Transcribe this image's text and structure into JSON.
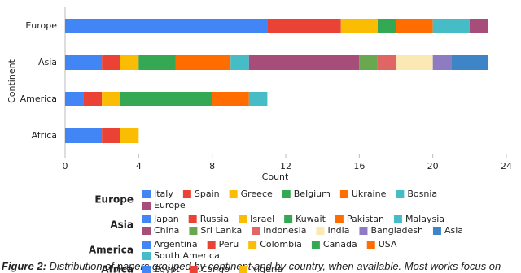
{
  "chart_data": {
    "type": "bar",
    "orientation": "horizontal",
    "stacked": true,
    "x_label": "Count",
    "y_label": "Continent",
    "categories": [
      "Europe",
      "Asia",
      "America",
      "Africa"
    ],
    "xlim": [
      0,
      24
    ],
    "xticks": [
      0,
      4,
      8,
      12,
      16,
      20,
      24
    ],
    "grid": false,
    "series": [
      {
        "name": "Italy",
        "color": "#4285f4",
        "values": [
          11,
          null,
          null,
          null
        ]
      },
      {
        "name": "Spain",
        "color": "#ea4335",
        "values": [
          4,
          null,
          null,
          null
        ]
      },
      {
        "name": "Greece",
        "color": "#fbbc04",
        "values": [
          2,
          null,
          null,
          null
        ]
      },
      {
        "name": "Belgium",
        "color": "#34a853",
        "values": [
          1,
          null,
          null,
          null
        ]
      },
      {
        "name": "Ukraine",
        "color": "#ff6d01",
        "values": [
          2,
          null,
          null,
          null
        ]
      },
      {
        "name": "Bosnia",
        "color": "#46bdc6",
        "values": [
          2,
          null,
          null,
          null
        ]
      },
      {
        "name": "Europe",
        "color": "#a64d79",
        "values": [
          1,
          null,
          null,
          null
        ]
      },
      {
        "name": "Japan",
        "color": "#4285f4",
        "values": [
          null,
          2,
          null,
          null
        ]
      },
      {
        "name": "Russia",
        "color": "#ea4335",
        "values": [
          null,
          1,
          null,
          null
        ]
      },
      {
        "name": "Israel",
        "color": "#fbbc04",
        "values": [
          null,
          1,
          null,
          null
        ]
      },
      {
        "name": "Kuwait",
        "color": "#34a853",
        "values": [
          null,
          2,
          null,
          null
        ]
      },
      {
        "name": "Pakistan",
        "color": "#ff6d01",
        "values": [
          null,
          3,
          null,
          null
        ]
      },
      {
        "name": "Malaysia",
        "color": "#46bdc6",
        "values": [
          null,
          1,
          null,
          null
        ]
      },
      {
        "name": "China",
        "color": "#a64d79",
        "values": [
          null,
          6,
          null,
          null
        ]
      },
      {
        "name": "Sri Lanka",
        "color": "#6aa84f",
        "values": [
          null,
          1,
          null,
          null
        ]
      },
      {
        "name": "Indonesia",
        "color": "#e06666",
        "values": [
          null,
          1,
          null,
          null
        ]
      },
      {
        "name": "India",
        "color": "#fce8b2",
        "values": [
          null,
          2,
          null,
          null
        ]
      },
      {
        "name": "Bangladesh",
        "color": "#8e7cc3",
        "values": [
          null,
          1,
          null,
          null
        ]
      },
      {
        "name": "Asia",
        "color": "#3d85c6",
        "values": [
          null,
          2,
          null,
          null
        ]
      },
      {
        "name": "Argentina",
        "color": "#4285f4",
        "values": [
          null,
          null,
          1,
          null
        ]
      },
      {
        "name": "Peru",
        "color": "#ea4335",
        "values": [
          null,
          null,
          1,
          null
        ]
      },
      {
        "name": "Colombia",
        "color": "#fbbc04",
        "values": [
          null,
          null,
          1,
          null
        ]
      },
      {
        "name": "Canada",
        "color": "#34a853",
        "values": [
          null,
          null,
          5,
          null
        ]
      },
      {
        "name": "USA",
        "color": "#ff6d01",
        "values": [
          null,
          null,
          2,
          null
        ]
      },
      {
        "name": "South America",
        "color": "#46bdc6",
        "values": [
          null,
          null,
          1,
          null
        ]
      },
      {
        "name": "Egypt",
        "color": "#4285f4",
        "values": [
          null,
          null,
          null,
          2
        ]
      },
      {
        "name": "Congo",
        "color": "#ea4335",
        "values": [
          null,
          null,
          null,
          1
        ]
      },
      {
        "name": "Nigeria",
        "color": "#fbbc04",
        "values": [
          null,
          null,
          null,
          1
        ]
      }
    ]
  },
  "caption_label": "Figure 2:",
  "caption_text": "Distribution of papers grouped by continent and by country, when available. Most works focus on"
}
